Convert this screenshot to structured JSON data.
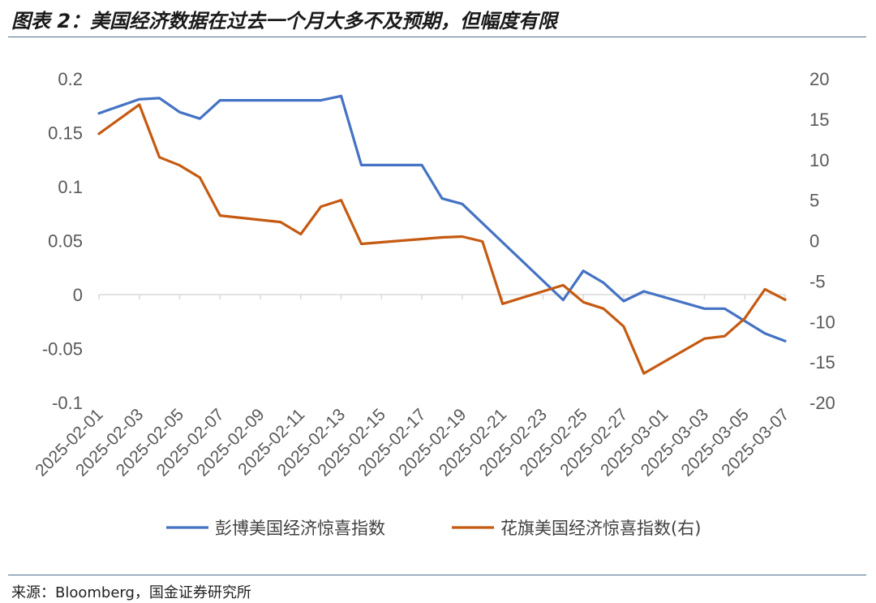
{
  "figure": {
    "title": "图表 2：美国经济数据在过去一个月大多不及预期，但幅度有限",
    "source": "来源：Bloomberg，国金证券研究所"
  },
  "chart_data": {
    "type": "line",
    "x": [
      "2025-02-01",
      "2025-02-02",
      "2025-02-03",
      "2025-02-04",
      "2025-02-05",
      "2025-02-06",
      "2025-02-07",
      "2025-02-08",
      "2025-02-09",
      "2025-02-10",
      "2025-02-11",
      "2025-02-12",
      "2025-02-13",
      "2025-02-14",
      "2025-02-15",
      "2025-02-16",
      "2025-02-17",
      "2025-02-18",
      "2025-02-19",
      "2025-02-20",
      "2025-02-21",
      "2025-02-22",
      "2025-02-23",
      "2025-02-24",
      "2025-02-25",
      "2025-02-26",
      "2025-02-27",
      "2025-02-28",
      "2025-03-01",
      "2025-03-02",
      "2025-03-03",
      "2025-03-04",
      "2025-03-05",
      "2025-03-06",
      "2025-03-07"
    ],
    "x_tick_labels": [
      "2025-02-01",
      "2025-02-03",
      "2025-02-05",
      "2025-02-07",
      "2025-02-09",
      "2025-02-11",
      "2025-02-13",
      "2025-02-15",
      "2025-02-17",
      "2025-02-19",
      "2025-02-21",
      "2025-02-23",
      "2025-02-25",
      "2025-02-27",
      "2025-03-01",
      "2025-03-03",
      "2025-03-05",
      "2025-03-07"
    ],
    "y_left": {
      "ylim": [
        -0.1,
        0.2
      ],
      "ticks": [
        "0.2",
        "0.15",
        "0.1",
        "0.05",
        "0",
        "-0.05",
        "-0.1"
      ],
      "tick_values": [
        0.2,
        0.15,
        0.1,
        0.05,
        0,
        -0.05,
        -0.1
      ]
    },
    "y_right": {
      "ylim": [
        -20,
        20
      ],
      "ticks": [
        "20",
        "15",
        "10",
        "5",
        "0",
        "-5",
        "-10",
        "-15",
        "-20"
      ],
      "tick_values": [
        20,
        15,
        10,
        5,
        0,
        -5,
        -10,
        -15,
        -20
      ]
    },
    "grid": false,
    "legend_position": "bottom",
    "series": [
      {
        "name": "彭博美国经济惊喜指数",
        "axis": "left",
        "color": "#4472c4",
        "points": [
          [
            "2025-02-01",
            0.168
          ],
          [
            "2025-02-03",
            0.181
          ],
          [
            "2025-02-04",
            0.182
          ],
          [
            "2025-02-05",
            0.169
          ],
          [
            "2025-02-06",
            0.163
          ],
          [
            "2025-02-07",
            0.18
          ],
          [
            "2025-02-12",
            0.18
          ],
          [
            "2025-02-13",
            0.184
          ],
          [
            "2025-02-14",
            0.12
          ],
          [
            "2025-02-17",
            0.12
          ],
          [
            "2025-02-18",
            0.089
          ],
          [
            "2025-02-19",
            0.084
          ],
          [
            "2025-02-24",
            -0.005
          ],
          [
            "2025-02-25",
            0.022
          ],
          [
            "2025-02-26",
            0.011
          ],
          [
            "2025-02-27",
            -0.006
          ],
          [
            "2025-02-28",
            0.003
          ],
          [
            "2025-03-03",
            -0.013
          ],
          [
            "2025-03-04",
            -0.013
          ],
          [
            "2025-03-06",
            -0.036
          ],
          [
            "2025-03-07",
            -0.043
          ]
        ]
      },
      {
        "name": "花旗美国经济惊喜指数(右)",
        "axis": "right",
        "color": "#c55a11",
        "points": [
          [
            "2025-02-01",
            13.2
          ],
          [
            "2025-02-03",
            16.8
          ],
          [
            "2025-02-04",
            10.3
          ],
          [
            "2025-02-05",
            9.3
          ],
          [
            "2025-02-06",
            7.8
          ],
          [
            "2025-02-07",
            3.1
          ],
          [
            "2025-02-10",
            2.3
          ],
          [
            "2025-02-11",
            0.8
          ],
          [
            "2025-02-12",
            4.2
          ],
          [
            "2025-02-13",
            5.0
          ],
          [
            "2025-02-14",
            -0.4
          ],
          [
            "2025-02-18",
            0.4
          ],
          [
            "2025-02-19",
            0.5
          ],
          [
            "2025-02-20",
            -0.1
          ],
          [
            "2025-02-21",
            -7.8
          ],
          [
            "2025-02-24",
            -5.5
          ],
          [
            "2025-02-25",
            -7.6
          ],
          [
            "2025-02-26",
            -8.4
          ],
          [
            "2025-02-27",
            -10.6
          ],
          [
            "2025-02-28",
            -16.4
          ],
          [
            "2025-03-03",
            -12.1
          ],
          [
            "2025-03-04",
            -11.8
          ],
          [
            "2025-03-05",
            -9.6
          ],
          [
            "2025-03-06",
            -6.0
          ],
          [
            "2025-03-07",
            -7.3
          ]
        ]
      }
    ]
  }
}
